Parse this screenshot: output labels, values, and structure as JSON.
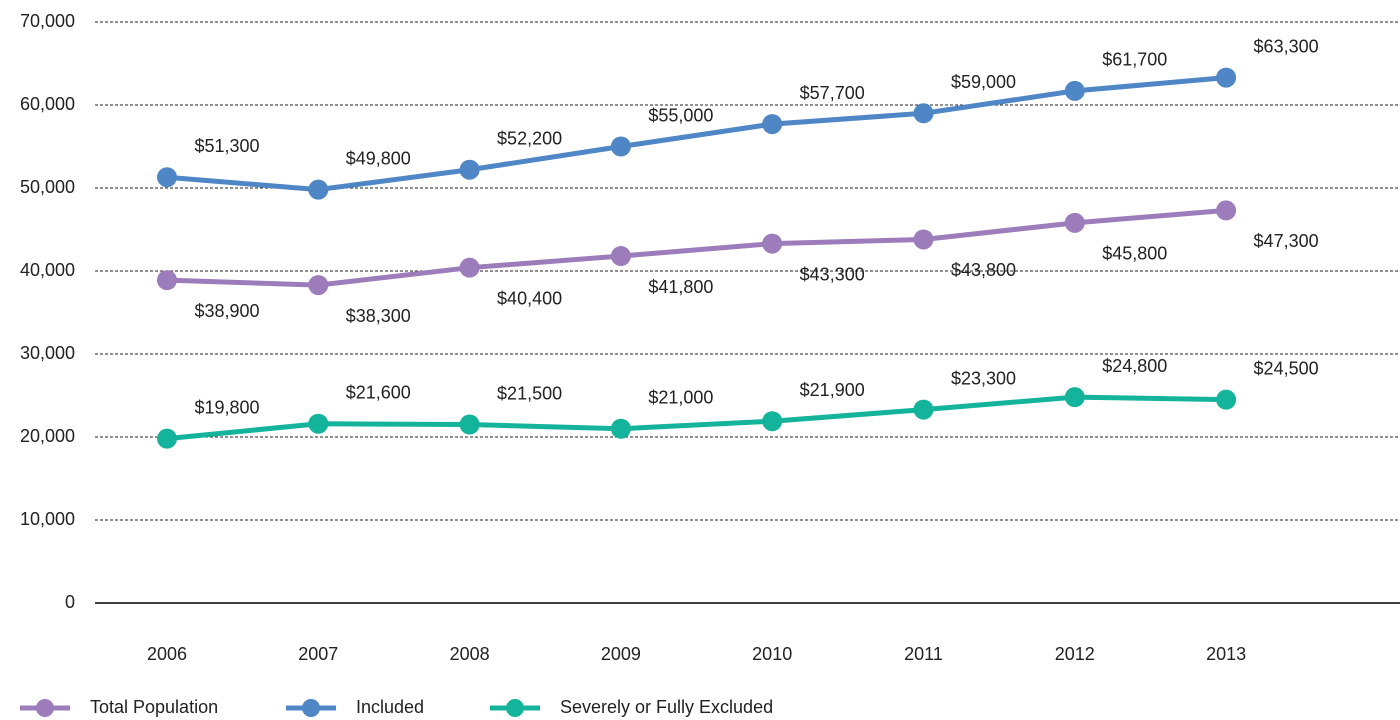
{
  "chart_data": {
    "type": "line",
    "categories": [
      "2006",
      "2007",
      "2008",
      "2009",
      "2010",
      "2011",
      "2012",
      "2013"
    ],
    "series": [
      {
        "name": "Total Population",
        "color": "#9d7cbb",
        "values": [
          38900,
          38300,
          40400,
          41800,
          43300,
          43800,
          45800,
          47300
        ],
        "value_labels": [
          "$38,900",
          "$38,300",
          "$40,400",
          "$41,800",
          "$43,300",
          "$43,800",
          "$45,800",
          "$47,300"
        ]
      },
      {
        "name": "Included",
        "color": "#4f86c6",
        "values": [
          51300,
          49800,
          52200,
          55000,
          57700,
          59000,
          61700,
          63300
        ],
        "value_labels": [
          "$51,300",
          "$49,800",
          "$52,200",
          "$55,000",
          "$57,700",
          "$59,000",
          "$61,700",
          "$63,300"
        ]
      },
      {
        "name": "Severely or Fully Excluded",
        "color": "#14b39b",
        "values": [
          19800,
          21600,
          21500,
          21000,
          21900,
          23300,
          24800,
          24500
        ],
        "value_labels": [
          "$19,800",
          "$21,600",
          "$21,500",
          "$21,000",
          "$21,900",
          "$23,300",
          "$24,800",
          "$24,500"
        ]
      }
    ],
    "ylim": [
      0,
      70000
    ],
    "yticks": [
      0,
      {
        "value": 10000,
        "label": "10,000"
      },
      {
        "value": 20000,
        "label": "20,000"
      },
      {
        "value": 30000,
        "label": "30,000"
      },
      {
        "value": 40000,
        "label": "40,000"
      },
      {
        "value": 50000,
        "label": "50,000"
      },
      {
        "value": 60000,
        "label": "60,000"
      },
      {
        "value": 70000,
        "label": "70,000"
      }
    ],
    "grid": true
  }
}
